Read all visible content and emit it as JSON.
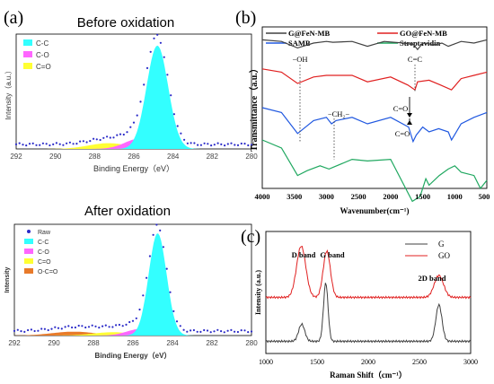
{
  "chart_data": [
    {
      "type": "area",
      "panel_label": "(a)",
      "title": "Before oxidation",
      "xlabel": "Binding Energy（eV）",
      "ylabel": "Intensity（a.u.）",
      "xlim": [
        292,
        280
      ],
      "xticks": [
        "292",
        "290",
        "288",
        "286",
        "284",
        "282",
        "280"
      ],
      "legend_position": "top-left",
      "legend": [
        "C-C",
        "C-O",
        "C=O"
      ],
      "components": [
        {
          "name": "C-C",
          "color": "#33ffff",
          "center": 284.8,
          "height": 0.9,
          "width": 0.55
        },
        {
          "name": "C-O",
          "color": "#ff66ff",
          "center": 285.7,
          "height": 0.09,
          "width": 0.75
        },
        {
          "name": "C=O",
          "color": "#ffff33",
          "center": 287.3,
          "height": 0.05,
          "width": 1.0
        }
      ],
      "raw_points": {
        "color": "#2a2ac8"
      }
    },
    {
      "type": "area",
      "title": "After oxidation",
      "xlabel": "Binding Energy（eV）",
      "ylabel": "Intensity",
      "xlim": [
        292,
        280
      ],
      "xticks": [
        "292",
        "290",
        "288",
        "286",
        "284",
        "282",
        "280"
      ],
      "legend_position": "top-left",
      "legend": [
        "Raw",
        "C-C",
        "C-O",
        "C=O",
        "O-C=O"
      ],
      "components": [
        {
          "name": "C-C",
          "color": "#33ffff",
          "center": 284.75,
          "height": 0.92,
          "width": 0.45
        },
        {
          "name": "C-O",
          "color": "#ff66ff",
          "center": 285.6,
          "height": 0.06,
          "width": 0.7
        },
        {
          "name": "C=O",
          "color": "#ffff33",
          "center": 287.0,
          "height": 0.03,
          "width": 1.0
        },
        {
          "name": "O-C=O",
          "color": "#e87a2a",
          "center": 289.0,
          "height": 0.035,
          "width": 1.1
        }
      ],
      "raw_points": {
        "color": "#2a2ac8"
      }
    },
    {
      "type": "line",
      "panel_label": "(b)",
      "xlabel": "Wavenumber(cm⁻¹)",
      "ylabel": "Transmittance（a.u.）",
      "xlim": [
        4000,
        500
      ],
      "xticks": [
        "4000",
        "3500",
        "3000",
        "2500",
        "2000",
        "1500",
        "1000",
        "500"
      ],
      "legend_position": "top",
      "annotations": [
        "−OH",
        "C=C",
        "C=O",
        "−CH₂−",
        "C=O"
      ],
      "series": [
        {
          "name": "G@FeN-MB",
          "color": "#404040",
          "offset": 0.92,
          "x": [
            4000,
            3700,
            3450,
            3200,
            3000,
            2900,
            2600,
            2360,
            2100,
            1800,
            1640,
            1580,
            1500,
            1300,
            1200,
            1100,
            900,
            700,
            500
          ],
          "y": [
            0,
            -0.01,
            -0.05,
            -0.02,
            -0.01,
            -0.015,
            -0.01,
            -0.04,
            -0.01,
            -0.02,
            -0.03,
            -0.06,
            -0.02,
            -0.03,
            -0.02,
            -0.04,
            -0.01,
            -0.02,
            0
          ]
        },
        {
          "name": "GO@FeN-MB",
          "color": "#e02020",
          "offset": 0.74,
          "x": [
            4000,
            3700,
            3450,
            3200,
            3000,
            2800,
            2600,
            2360,
            2000,
            1730,
            1620,
            1580,
            1400,
            1220,
            1050,
            900,
            700,
            500
          ],
          "y": [
            0,
            -0.02,
            -0.09,
            -0.05,
            -0.04,
            -0.04,
            -0.04,
            -0.08,
            -0.05,
            -0.1,
            -0.13,
            -0.08,
            -0.07,
            -0.1,
            -0.13,
            -0.06,
            -0.04,
            -0.02
          ]
        },
        {
          "name": "SAMB",
          "color": "#2058e0",
          "offset": 0.5,
          "x": [
            4000,
            3700,
            3450,
            3200,
            3000,
            2920,
            2850,
            2600,
            2360,
            2000,
            1720,
            1650,
            1600,
            1500,
            1400,
            1250,
            1100,
            1050,
            900,
            700,
            500
          ],
          "y": [
            0,
            -0.03,
            -0.16,
            -0.08,
            -0.06,
            -0.1,
            -0.08,
            -0.06,
            -0.1,
            -0.06,
            -0.12,
            -0.21,
            -0.17,
            -0.12,
            -0.15,
            -0.13,
            -0.15,
            -0.2,
            -0.1,
            -0.06,
            -0.03
          ]
        },
        {
          "name": "Streptavidin",
          "color": "#20a860",
          "offset": 0.3,
          "x": [
            4000,
            3700,
            3450,
            3300,
            3100,
            2960,
            2900,
            2600,
            2360,
            2000,
            1660,
            1540,
            1450,
            1400,
            1240,
            1100,
            1000,
            900,
            700,
            600,
            500
          ],
          "y": [
            0,
            -0.05,
            -0.22,
            -0.19,
            -0.16,
            -0.18,
            -0.17,
            -0.12,
            -0.13,
            -0.12,
            -0.38,
            -0.35,
            -0.24,
            -0.28,
            -0.22,
            -0.18,
            -0.16,
            -0.2,
            -0.22,
            -0.3,
            -0.25
          ]
        }
      ]
    },
    {
      "type": "line",
      "panel_label": "(c)",
      "xlabel": "Raman Shift（cm⁻¹）",
      "ylabel": "Intensity (a.u.)",
      "xlim": [
        1000,
        3000
      ],
      "xticks": [
        "1000",
        "1500",
        "2000",
        "2500",
        "3000"
      ],
      "legend_position": "top-right",
      "annotations": [
        "D band",
        "G band",
        "2D band"
      ],
      "series": [
        {
          "name": "G",
          "color": "#404040",
          "offset": 0.1,
          "peaks": [
            {
              "c": 1350,
              "h": 0.14,
              "w": 30
            },
            {
              "c": 1585,
              "h": 0.48,
              "w": 22
            },
            {
              "c": 2690,
              "h": 0.3,
              "w": 30
            }
          ]
        },
        {
          "name": "GO",
          "color": "#e02020",
          "offset": 0.46,
          "peaks": [
            {
              "c": 1345,
              "h": 0.42,
              "w": 45
            },
            {
              "c": 1595,
              "h": 0.38,
              "w": 35
            },
            {
              "c": 2690,
              "h": 0.18,
              "w": 45
            }
          ]
        }
      ]
    }
  ]
}
